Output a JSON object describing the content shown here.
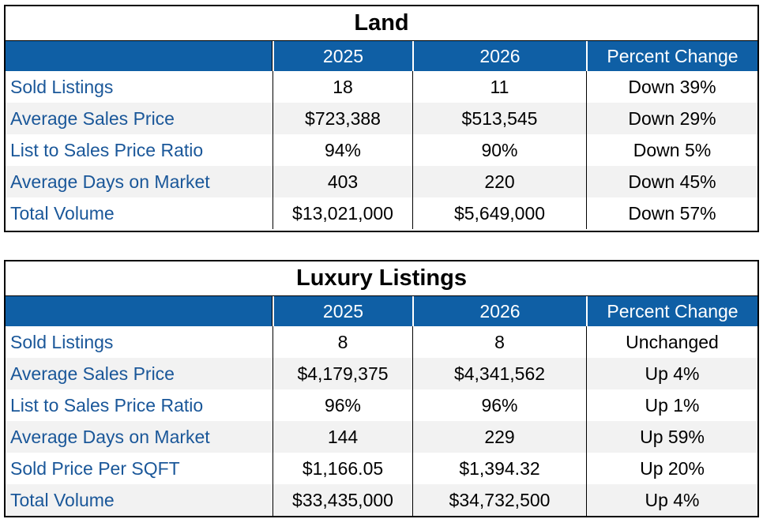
{
  "land": {
    "title": "Land",
    "headers": [
      "",
      "2025",
      "2026",
      "Percent Change"
    ],
    "rows": [
      [
        "Sold Listings",
        "18",
        "11",
        "Down 39%"
      ],
      [
        "Average Sales Price",
        "$723,388",
        "$513,545",
        "Down 29%"
      ],
      [
        "List to Sales Price Ratio",
        "94%",
        "90%",
        "Down 5%"
      ],
      [
        "Average Days on Market",
        "403",
        "220",
        "Down 45%"
      ],
      [
        "Total Volume",
        "$13,021,000",
        "$5,649,000",
        "Down 57%"
      ]
    ]
  },
  "luxury": {
    "title": "Luxury Listings",
    "headers": [
      "",
      "2025",
      "2026",
      "Percent Change"
    ],
    "rows": [
      [
        "Sold Listings",
        "8",
        "8",
        "Unchanged"
      ],
      [
        "Average Sales Price",
        "$4,179,375",
        "$4,341,562",
        "Up 4%"
      ],
      [
        "List to Sales Price Ratio",
        "96%",
        "96%",
        "Up 1%"
      ],
      [
        "Average Days on Market",
        "144",
        "229",
        "Up 59%"
      ],
      [
        "Sold Price Per SQFT",
        "$1,166.05",
        "$1,394.32",
        "Up 20%"
      ],
      [
        "Total Volume",
        "$33,435,000",
        "$34,732,500",
        "Up 4%"
      ]
    ]
  },
  "colors": {
    "header_bg": "#0f5fa5",
    "label_text": "#1a5799",
    "alt_row_bg": "#f2f2f2"
  }
}
